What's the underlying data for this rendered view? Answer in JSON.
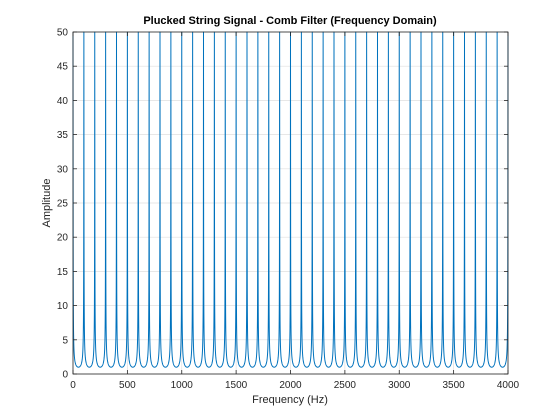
{
  "colors": {
    "line": "#0072BD",
    "axis": "#262626",
    "grid": "#dfdfdf",
    "background": "#ffffff"
  },
  "chart_data": {
    "type": "line",
    "title": "Plucked String Signal - Comb Filter (Frequency Domain)",
    "xlabel": "Frequency (Hz)",
    "ylabel": "Amplitude",
    "xlim": [
      0,
      4000
    ],
    "ylim": [
      0,
      50
    ],
    "xticks": [
      0,
      500,
      1000,
      1500,
      2000,
      2500,
      3000,
      3500,
      4000
    ],
    "xtick_labels": [
      "0",
      "500",
      "1000",
      "1500",
      "2000",
      "2500",
      "3000",
      "3500",
      "4000"
    ],
    "yticks": [
      0,
      5,
      10,
      15,
      20,
      25,
      30,
      35,
      40,
      45,
      50
    ],
    "ytick_labels": [
      "0",
      "5",
      "10",
      "15",
      "20",
      "25",
      "30",
      "35",
      "40",
      "45",
      "50"
    ],
    "grid": true,
    "series": [
      {
        "peak_spacing_hz": 100,
        "first_peak_hz": 0,
        "minimum_amplitude": 0.5,
        "peak_amplitude": 50
      }
    ]
  }
}
